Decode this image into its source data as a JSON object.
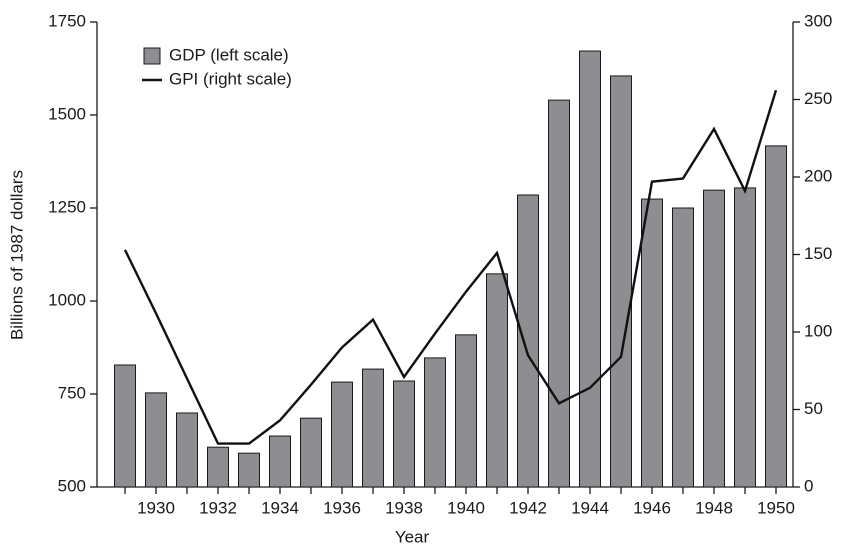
{
  "chart_data": {
    "type": "bar_line",
    "xlabel": "Year",
    "ylabel": "Billions of 1987 dollars",
    "categories": [
      null,
      "1930",
      null,
      "1932",
      null,
      "1934",
      null,
      "1936",
      null,
      "1938",
      null,
      "1940",
      null,
      "1942",
      null,
      "1944",
      null,
      "1946",
      null,
      "1948",
      null,
      "1950"
    ],
    "series": [
      {
        "name": "GDP (left scale)",
        "type": "bar",
        "color": "#8e8e92",
        "values": [
          828,
          753,
          699,
          607,
          591,
          637,
          685,
          782,
          817,
          785,
          847,
          909,
          1073,
          1285,
          1540,
          1672,
          1605,
          1274,
          1250,
          1298,
          1304,
          1417
        ]
      },
      {
        "name": "GPI (right scale)",
        "type": "line",
        "axis": "y2",
        "color": "#111111",
        "values": [
          153,
          112,
          70,
          28,
          28,
          43,
          66,
          90,
          108,
          71,
          99,
          126,
          151,
          85,
          54,
          64,
          84,
          197,
          199,
          231,
          191,
          256
        ]
      }
    ],
    "ylim": [
      500,
      1750
    ],
    "yticks": [
      500,
      750,
      1000,
      1250,
      1500,
      1750
    ],
    "y2lim": [
      0,
      300
    ],
    "y2ticks": [
      0,
      50,
      100,
      150,
      200,
      250,
      300
    ],
    "legend": "upper left"
  }
}
